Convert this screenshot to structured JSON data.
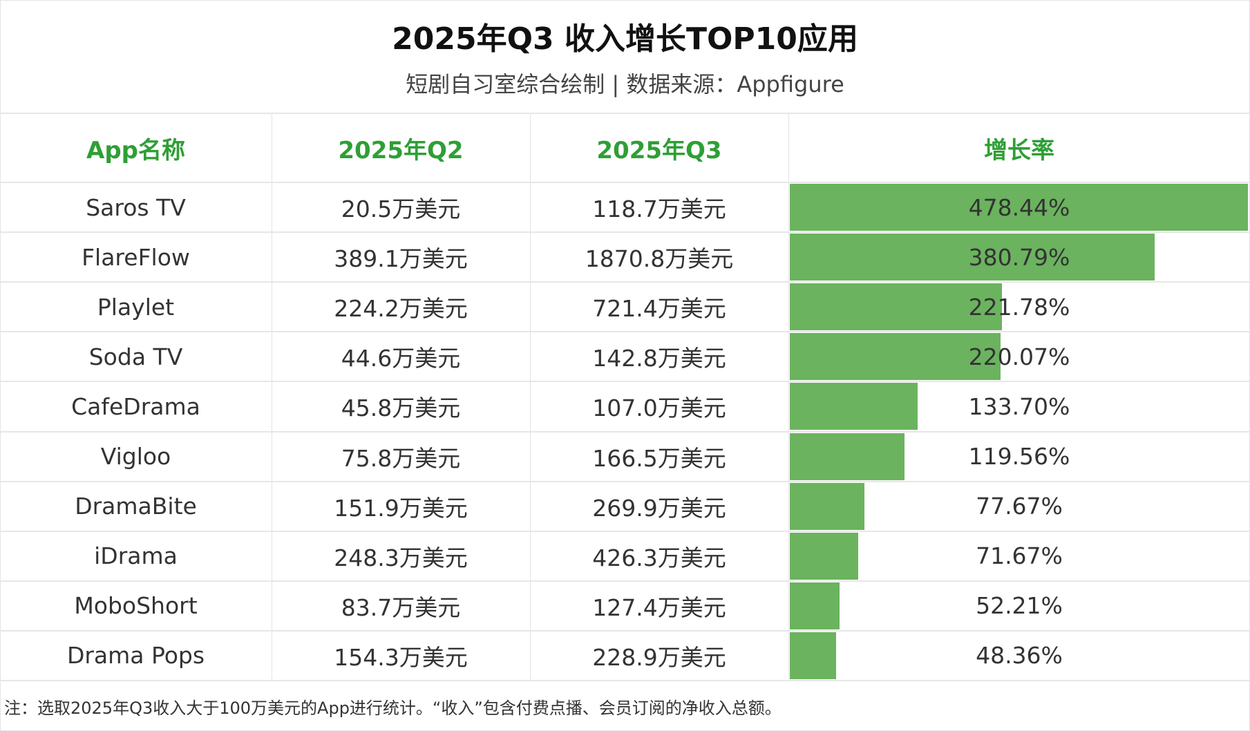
{
  "title": "2025年Q3 收入增长TOP10应用",
  "subtitle": "短剧自习室综合绘制 | 数据来源：Appfigure",
  "chart_data": {
    "type": "table",
    "columns": [
      "App名称",
      "2025年Q2",
      "2025年Q3",
      "增长率"
    ],
    "rows": [
      {
        "app": "Saros TV",
        "q2": "20.5万美元",
        "q3": "118.7万美元",
        "growth": "478.44%",
        "growth_value": 478.44
      },
      {
        "app": "FlareFlow",
        "q2": "389.1万美元",
        "q3": "1870.8万美元",
        "growth": "380.79%",
        "growth_value": 380.79
      },
      {
        "app": "Playlet",
        "q2": "224.2万美元",
        "q3": "721.4万美元",
        "growth": "221.78%",
        "growth_value": 221.78
      },
      {
        "app": "Soda TV",
        "q2": "44.6万美元",
        "q3": "142.8万美元",
        "growth": "220.07%",
        "growth_value": 220.07
      },
      {
        "app": "CafeDrama",
        "q2": "45.8万美元",
        "q3": "107.0万美元",
        "growth": "133.70%",
        "growth_value": 133.7
      },
      {
        "app": "Vigloo",
        "q2": "75.8万美元",
        "q3": "166.5万美元",
        "growth": "119.56%",
        "growth_value": 119.56
      },
      {
        "app": "DramaBite",
        "q2": "151.9万美元",
        "q3": "269.9万美元",
        "growth": "77.67%",
        "growth_value": 77.67
      },
      {
        "app": "iDrama",
        "q2": "248.3万美元",
        "q3": "426.3万美元",
        "growth": "71.67%",
        "growth_value": 71.67
      },
      {
        "app": "MoboShort",
        "q2": "83.7万美元",
        "q3": "127.4万美元",
        "growth": "52.21%",
        "growth_value": 52.21
      },
      {
        "app": "Drama Pops",
        "q2": "154.3万美元",
        "q3": "228.9万美元",
        "growth": "48.36%",
        "growth_value": 48.36
      }
    ],
    "bar_color": "#6bb35f",
    "header_color": "#2e9f35"
  },
  "note": "注：选取2025年Q3收入大于100万美元的App进行统计。“收入”包含付费点播、会员订阅的净收入总额。"
}
